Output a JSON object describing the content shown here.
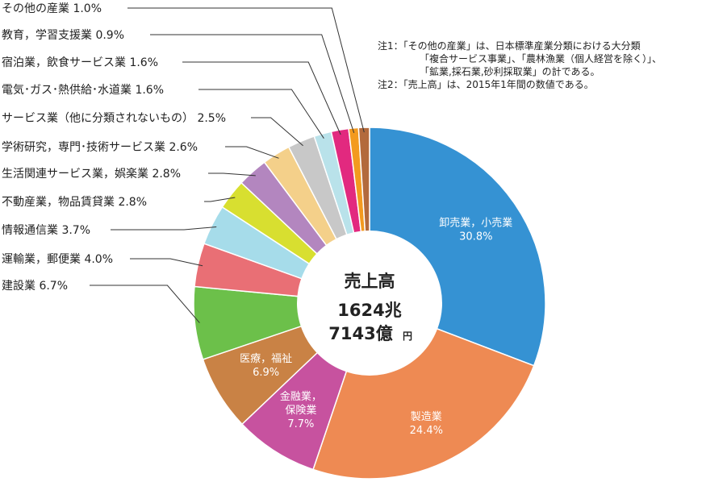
{
  "chart_data": {
    "type": "pie",
    "title": "",
    "center": {
      "title": "売上高",
      "line1": "1624兆",
      "line2": "7143億",
      "unit": "円"
    },
    "slices": [
      {
        "key": "oroshi",
        "label": "卸売業，小売業",
        "value": 30.8,
        "value_text": "30.8%",
        "color": "#3592d3"
      },
      {
        "key": "seizo",
        "label": "製造業",
        "value": 24.4,
        "value_text": "24.4%",
        "color": "#ee8a53"
      },
      {
        "key": "kinyu",
        "label": "金融業，保険業",
        "value": 7.7,
        "value_text": "7.7%",
        "color": "#c7529f"
      },
      {
        "key": "iryo",
        "label": "医療，福祉",
        "value": 6.9,
        "value_text": "6.9%",
        "color": "#c98245"
      },
      {
        "key": "kensetsu",
        "label": "建設業",
        "value": 6.7,
        "value_text": "6.7%",
        "color": "#6cc04a"
      },
      {
        "key": "unyu",
        "label": "運輸業，郵便業",
        "value": 4.0,
        "value_text": "4.0%",
        "color": "#e96f75"
      },
      {
        "key": "joho",
        "label": "情報通信業",
        "value": 3.7,
        "value_text": "3.7%",
        "color": "#a6dcea"
      },
      {
        "key": "fudosan",
        "label": "不動産業，物品賃貸業",
        "value": 2.8,
        "value_text": "2.8%",
        "color": "#d8df30"
      },
      {
        "key": "seikatsu",
        "label": "生活関連サービス業，娯楽業",
        "value": 2.8,
        "value_text": "2.8%",
        "color": "#b386bf"
      },
      {
        "key": "gakujutsu",
        "label": "学術研究，専門･技術サービス業",
        "value": 2.6,
        "value_text": "2.6%",
        "color": "#f4d08a"
      },
      {
        "key": "service",
        "label": "サービス業（他に分類されないもの）",
        "value": 2.5,
        "value_text": "2.5%",
        "color": "#c8c8c8"
      },
      {
        "key": "denki",
        "label": "電気･ガス･熱供給･水道業",
        "value": 1.6,
        "value_text": "1.6%",
        "color": "#b9e2ea"
      },
      {
        "key": "shukuhaku",
        "label": "宿泊業，飲食サービス業",
        "value": 1.6,
        "value_text": "1.6%",
        "color": "#e2297f"
      },
      {
        "key": "kyoiku",
        "label": "教育，学習支援業",
        "value": 0.9,
        "value_text": "0.9%",
        "color": "#f39a1f"
      },
      {
        "key": "sonota",
        "label": "その他の産業",
        "value": 1.0,
        "value_text": "1.0%",
        "color": "#b36a3c"
      }
    ],
    "notes": [
      "注1：「その他の産業」は、日本標準産業分類における大分類",
      "「複合サービス事業」、「農林漁業（個人経営を除く）」、",
      "「鉱業,採石業,砂利採取業」の計である。",
      "注2：「売上高」は、2015年1年間の数値である。"
    ]
  }
}
